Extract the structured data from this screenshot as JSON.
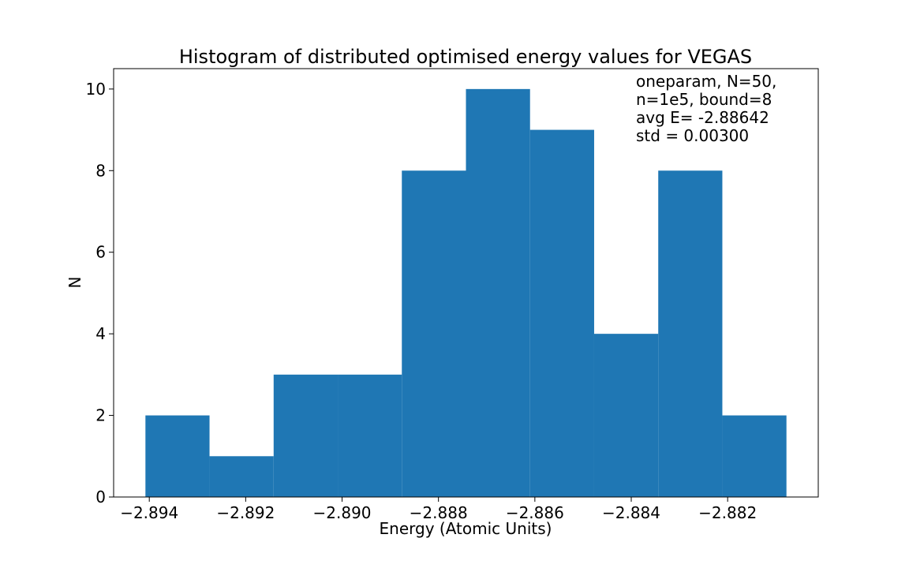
{
  "chart_data": {
    "type": "bar",
    "title": "Histogram of distributed optimised energy values for VEGAS",
    "xlabel": "Energy (Atomic Units)",
    "ylabel": "N",
    "bin_edges": [
      -2.89408,
      -2.89275,
      -2.89142,
      -2.89009,
      -2.88876,
      -2.88743,
      -2.8861,
      -2.88477,
      -2.88344,
      -2.88211,
      -2.88078
    ],
    "values": [
      2,
      1,
      3,
      3,
      8,
      10,
      9,
      4,
      8,
      2
    ],
    "xlim": [
      -2.89474,
      -2.88012
    ],
    "ylim": [
      0,
      10.5
    ],
    "xticks": [
      -2.894,
      -2.892,
      -2.89,
      -2.888,
      -2.886,
      -2.884,
      -2.882
    ],
    "xtick_labels": [
      "−2.894",
      "−2.892",
      "−2.890",
      "−2.888",
      "−2.886",
      "−2.884",
      "−2.882"
    ],
    "yticks": [
      0,
      2,
      4,
      6,
      8,
      10
    ],
    "ytick_labels": [
      "0",
      "2",
      "4",
      "6",
      "8",
      "10"
    ],
    "annotation": [
      "oneparam, N=50,",
      "n=1e5, bound=8",
      "avg E= -2.88642",
      "std = 0.00300"
    ],
    "bar_color": "#1f77b4",
    "grid": false,
    "legend": "none"
  }
}
